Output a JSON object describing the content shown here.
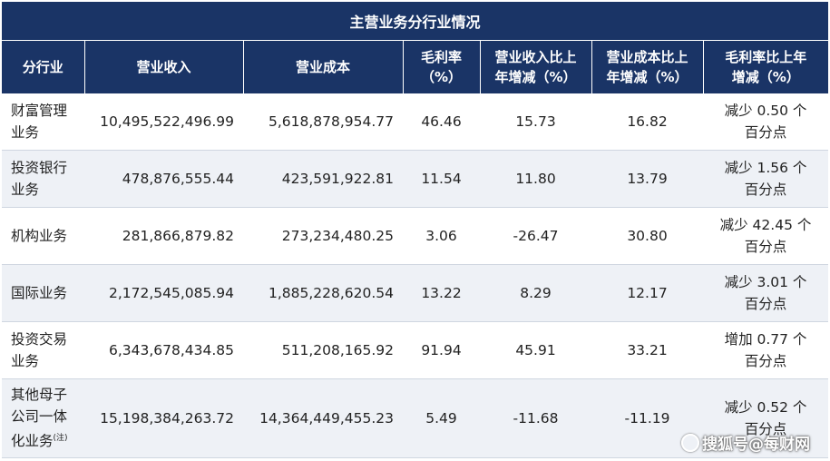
{
  "table": {
    "title": "主营业务分行业情况",
    "headers": [
      "分行业",
      "营业收入",
      "营业成本",
      "毛利率\n（%）",
      "营业收入比上\n年增减（%）",
      "营业成本比上\n年增减（%）",
      "毛利率比上年\n增减（%）"
    ],
    "rows": [
      {
        "segment": "财富管理\n业务",
        "note": "",
        "revenue": "10,495,522,496.99",
        "cost": "5,618,878,954.77",
        "margin": "46.46",
        "rev_change": "15.73",
        "cost_change": "16.82",
        "margin_change": "减少 0.50 个\n百分点"
      },
      {
        "segment": "投资银行\n业务",
        "note": "",
        "revenue": "478,876,555.44",
        "cost": "423,591,922.81",
        "margin": "11.54",
        "rev_change": "11.80",
        "cost_change": "13.79",
        "margin_change": "减少 1.56 个\n百分点"
      },
      {
        "segment": "机构业务",
        "note": "",
        "revenue": "281,866,879.82",
        "cost": "273,234,480.25",
        "margin": "3.06",
        "rev_change": "-26.47",
        "cost_change": "30.80",
        "margin_change": "减少 42.45 个\n百分点"
      },
      {
        "segment": "国际业务",
        "note": "",
        "revenue": "2,172,545,085.94",
        "cost": "1,885,228,620.54",
        "margin": "13.22",
        "rev_change": "8.29",
        "cost_change": "12.17",
        "margin_change": "减少 3.01 个\n百分点"
      },
      {
        "segment": "投资交易\n业务",
        "note": "",
        "revenue": "6,343,678,434.85",
        "cost": "511,208,165.92",
        "margin": "91.94",
        "rev_change": "45.91",
        "cost_change": "33.21",
        "margin_change": "增加 0.77 个\n百分点"
      },
      {
        "segment": "其他母子\n公司一体\n化业务",
        "note": "(注)",
        "revenue": "15,198,384,263.72",
        "cost": "14,364,449,455.23",
        "margin": "5.49",
        "rev_change": "-11.68",
        "cost_change": "-11.19",
        "margin_change": "减少 0.52 个\n百分点"
      }
    ]
  },
  "watermark": "搜狐号@每财网"
}
